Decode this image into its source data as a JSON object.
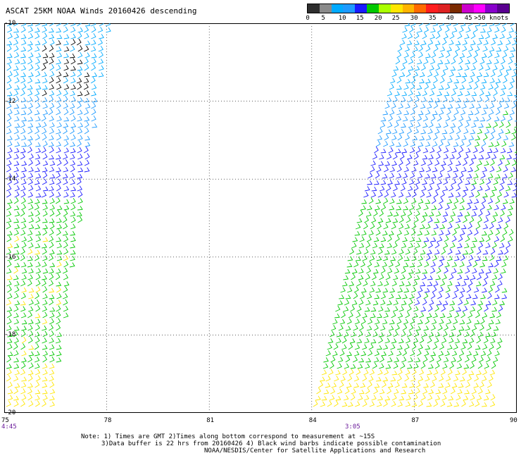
{
  "title": "ASCAT 25KM NOAA Winds 20160426 descending",
  "legend": {
    "colors": [
      "#2e2e2e",
      "#8a8a8a",
      "#00aaff",
      "#1e9aff",
      "#1a1aff",
      "#00c800",
      "#aaff00",
      "#ffe600",
      "#ffb400",
      "#ff6a00",
      "#ff1e1e",
      "#dd2222",
      "#7a2a00",
      "#cc00cc",
      "#ff00ff",
      "#8800cc",
      "#5a0090"
    ],
    "labels": [
      "0",
      "5",
      "10",
      "15",
      "20",
      "25",
      "30",
      "35",
      "40",
      "45",
      ">50 knots"
    ]
  },
  "map": {
    "lat_ticks": [
      "-10",
      "-12",
      "-14",
      "-16",
      "-18",
      "-20"
    ],
    "lon_ticks": [
      "75",
      "78",
      "81",
      "84",
      "87",
      "90"
    ],
    "lon_range": [
      75,
      90
    ],
    "lat_range": [
      -10,
      -20
    ],
    "pass_times": [
      "4:45",
      "3:05"
    ]
  },
  "notes": {
    "line1": "Note: 1) Times are GMT 2)Times along bottom correspond to measurement at ~15S",
    "line2": "3)Data buffer is 22 hrs from 20160426 4) Black wind barbs indicate possible contamination",
    "line3": "NOAA/NESDIS/Center for Satellite Applications and Research"
  }
}
